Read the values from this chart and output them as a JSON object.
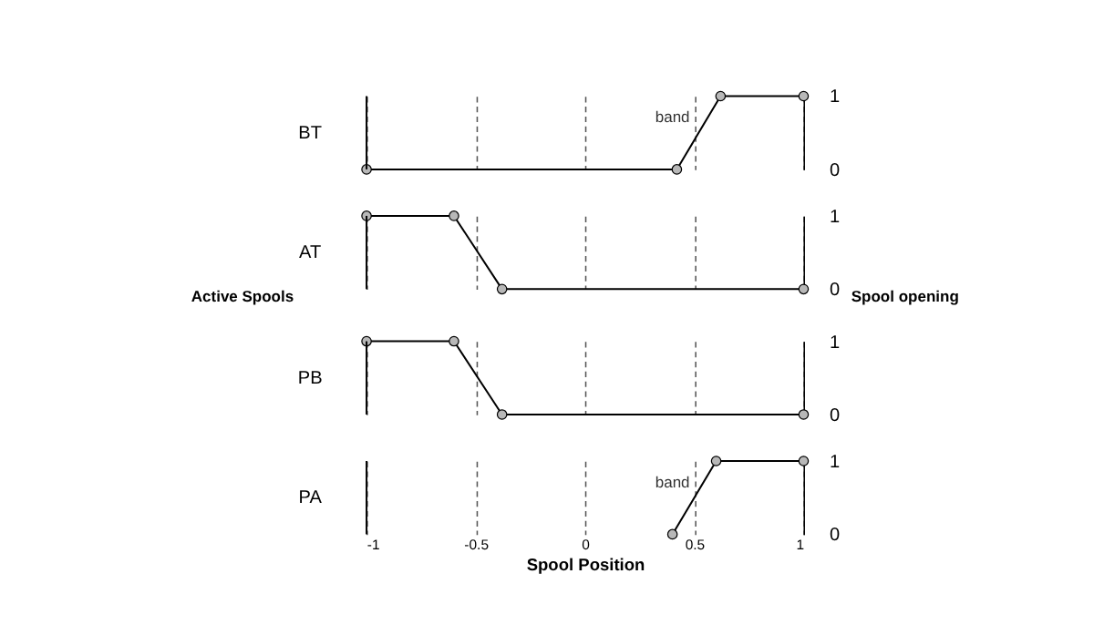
{
  "chart_data": [
    {
      "type": "line",
      "ylabel": "BT",
      "x": [
        -1,
        0.42,
        0.62,
        1
      ],
      "series": [
        {
          "color": "#000000",
          "values": [
            0,
            0,
            1,
            1
          ]
        }
      ],
      "xlim": [
        -1,
        1
      ],
      "ylim": [
        0,
        1
      ],
      "yticks": [
        0,
        1
      ],
      "grid": "x",
      "marker": "circle",
      "tick_labels": "y",
      "annotations": [
        "band"
      ]
    },
    {
      "type": "line",
      "ylabel": "AT",
      "x": [
        -1,
        -0.6,
        -0.38,
        1
      ],
      "series": [
        {
          "color": "#000000",
          "values": [
            1,
            1,
            0,
            0
          ]
        }
      ],
      "xlim": [
        -1,
        1
      ],
      "ylim": [
        0,
        1
      ],
      "yticks": [
        0,
        1
      ],
      "grid": "x",
      "marker": "circle",
      "tick_labels": "y",
      "annotations": [
        "Active Spools",
        "Spool opening"
      ]
    },
    {
      "type": "line",
      "ylabel": "PB",
      "x": [
        -1,
        -0.6,
        -0.38,
        1
      ],
      "series": [
        {
          "color": "#000000",
          "values": [
            1,
            1,
            0,
            0
          ]
        }
      ],
      "xlim": [
        -1,
        1
      ],
      "ylim": [
        0,
        1
      ],
      "yticks": [
        0,
        1
      ],
      "grid": "x",
      "marker": "circle",
      "tick_labels": "y"
    },
    {
      "type": "line",
      "ylabel": "PA",
      "xlabel": "Spool Position",
      "x": [
        0.4,
        0.6,
        1
      ],
      "series": [
        {
          "color": "#000000",
          "values": [
            0,
            1,
            1
          ]
        }
      ],
      "xlim": [
        -1,
        1
      ],
      "xticks": [
        {
          "value": -1,
          "label": "-1"
        },
        {
          "value": -0.5,
          "label": "-0.5"
        },
        {
          "value": 0,
          "label": "0"
        },
        {
          "value": 0.5,
          "label": "0.5"
        },
        {
          "value": 1,
          "label": "1"
        }
      ],
      "ylim": [
        0,
        1
      ],
      "yticks": [
        0,
        1
      ],
      "grid": "x",
      "marker": "circle",
      "annotations": [
        "band"
      ]
    }
  ]
}
